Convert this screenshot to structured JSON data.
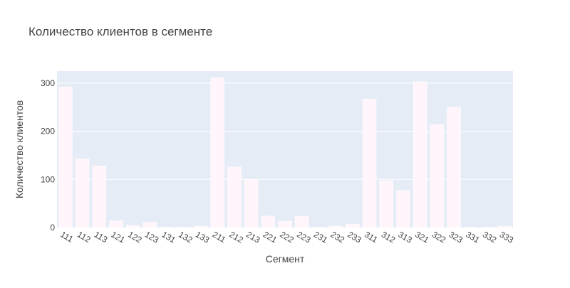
{
  "chart_data": {
    "type": "bar",
    "title": "Количество клиентов в сегменте",
    "xlabel": "Сегмент",
    "ylabel": "Количество клиентов",
    "categories": [
      "111",
      "112",
      "113",
      "121",
      "122",
      "123",
      "131",
      "132",
      "133",
      "211",
      "212",
      "213",
      "221",
      "222",
      "223",
      "231",
      "232",
      "233",
      "311",
      "312",
      "313",
      "321",
      "322",
      "323",
      "331",
      "332",
      "333"
    ],
    "values": [
      292,
      143,
      128,
      14,
      5,
      11,
      1,
      1,
      3,
      311,
      126,
      100,
      24,
      13,
      23,
      1,
      3,
      7,
      267,
      97,
      77,
      303,
      214,
      250,
      1,
      1,
      3
    ],
    "ylim": [
      0,
      325
    ],
    "yticks": [
      0,
      100,
      200,
      300
    ],
    "grid": true,
    "legend": "none",
    "colors": {
      "plot_background": "#e5ecf6",
      "bar_fill": "#fff5fa",
      "bar_stroke": "#ffffff",
      "gridline": "#ffffff",
      "text": "#444444"
    }
  }
}
